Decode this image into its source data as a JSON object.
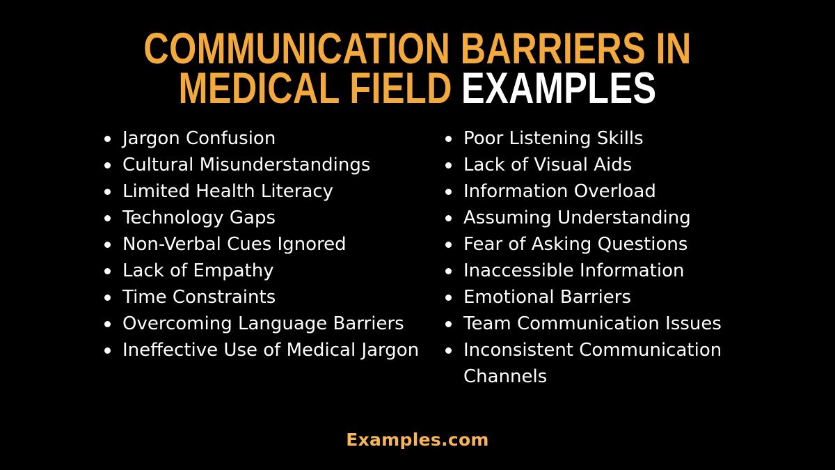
{
  "page": {
    "background_color": "#000000",
    "text_color": "#FFFFFF"
  },
  "title": {
    "line1": "COMMUNICATION BARRIERS IN",
    "line2_highlight": "MEDICAL FIELD",
    "line2_emphasis": "EXAMPLES",
    "highlight_color": "#F3A93C",
    "emphasis_color": "#FFFFFF"
  },
  "columns": {
    "left": {
      "items": [
        "Jargon Confusion",
        "Cultural Misunderstandings",
        "Limited Health Literacy",
        "Technology Gaps",
        "Non-Verbal Cues Ignored",
        "Lack of Empathy",
        "Time Constraints",
        "Overcoming Language Barriers",
        "Ineffective Use of Medical Jargon"
      ]
    },
    "right": {
      "items": [
        "Poor Listening Skills",
        "Lack of Visual Aids",
        "Information Overload",
        "Assuming Understanding",
        "Fear of Asking Questions",
        "Inaccessible Information",
        "Emotional Barriers",
        "Team Communication Issues",
        "Inconsistent Communication Channels"
      ]
    }
  },
  "footer": {
    "brand": "Examples.com",
    "color": "#F7B559"
  }
}
